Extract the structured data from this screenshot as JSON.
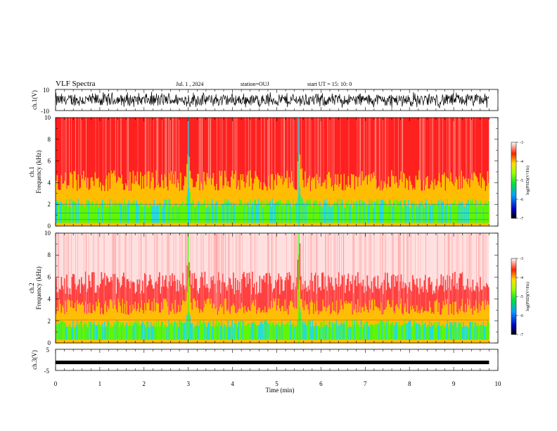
{
  "header": {
    "title": "VLF Spectra",
    "date": "Jul.  1  , 2024",
    "station": "station=OUJ",
    "start_ut": "start  UT =   15: 10: 0"
  },
  "colors": {
    "spec_low": "#00e0ff",
    "spec_mid": "#44ff00",
    "spec_yellow": "#ffcc00",
    "spec_high": "#ff2020",
    "spec_top": "#ffe0e0",
    "trace": "#000000"
  },
  "chart_data": [
    {
      "type": "line",
      "panel": "ch1-waveform",
      "ylabel": "ch.1(V)",
      "ylim": [
        -10,
        10
      ],
      "yticks": [
        "10",
        "-10"
      ],
      "description_series": "ch.1 waveform amplitude"
    },
    {
      "type": "heatmap",
      "panel": "ch1-spectrogram",
      "ylabel": "ch.1\nFrequency (kHz)",
      "ylabel_lines": [
        "ch.1",
        "Frequency  (kHz)"
      ],
      "ylim": [
        0,
        10
      ],
      "yticks": [
        "0",
        "2",
        "4",
        "6",
        "8",
        "10"
      ],
      "colorbar": {
        "label": "log(PSD)(V²/Hz)",
        "range": [
          -7,
          -3
        ],
        "ticks": [
          "-3",
          "-4",
          "-5",
          "-6",
          "-7"
        ]
      }
    },
    {
      "type": "heatmap",
      "panel": "ch2-spectrogram",
      "ylabel_lines": [
        "ch.2",
        "Frequency  (kHz)"
      ],
      "ylim": [
        0,
        10
      ],
      "yticks": [
        "0",
        "2",
        "4",
        "6",
        "8",
        "10"
      ],
      "colorbar": {
        "label": "log(PSD)(V²/Hz)",
        "range": [
          -7,
          -3
        ],
        "ticks": [
          "-3",
          "-4",
          "-5",
          "-6",
          "-7"
        ]
      }
    },
    {
      "type": "line",
      "panel": "ch3-waveform",
      "ylabel": "ch.3(V)",
      "ylim": [
        -5,
        5
      ],
      "yticks": [
        "5",
        "-5"
      ],
      "level": -1.2
    }
  ],
  "xaxis": {
    "label": "Time  (min)",
    "range": [
      0,
      10
    ],
    "ticks": [
      "0",
      "1",
      "2",
      "3",
      "4",
      "5",
      "6",
      "7",
      "8",
      "9",
      "10"
    ],
    "data_end": 9.8
  },
  "features": {
    "event_times_min": [
      3.0,
      5.5
    ],
    "ch1_green_top_khz": 2.3,
    "ch1_yellow_top_khz": 4.3,
    "ch2_yellow_top_khz": 3.4,
    "ch2_red_top_khz": 5.2
  }
}
